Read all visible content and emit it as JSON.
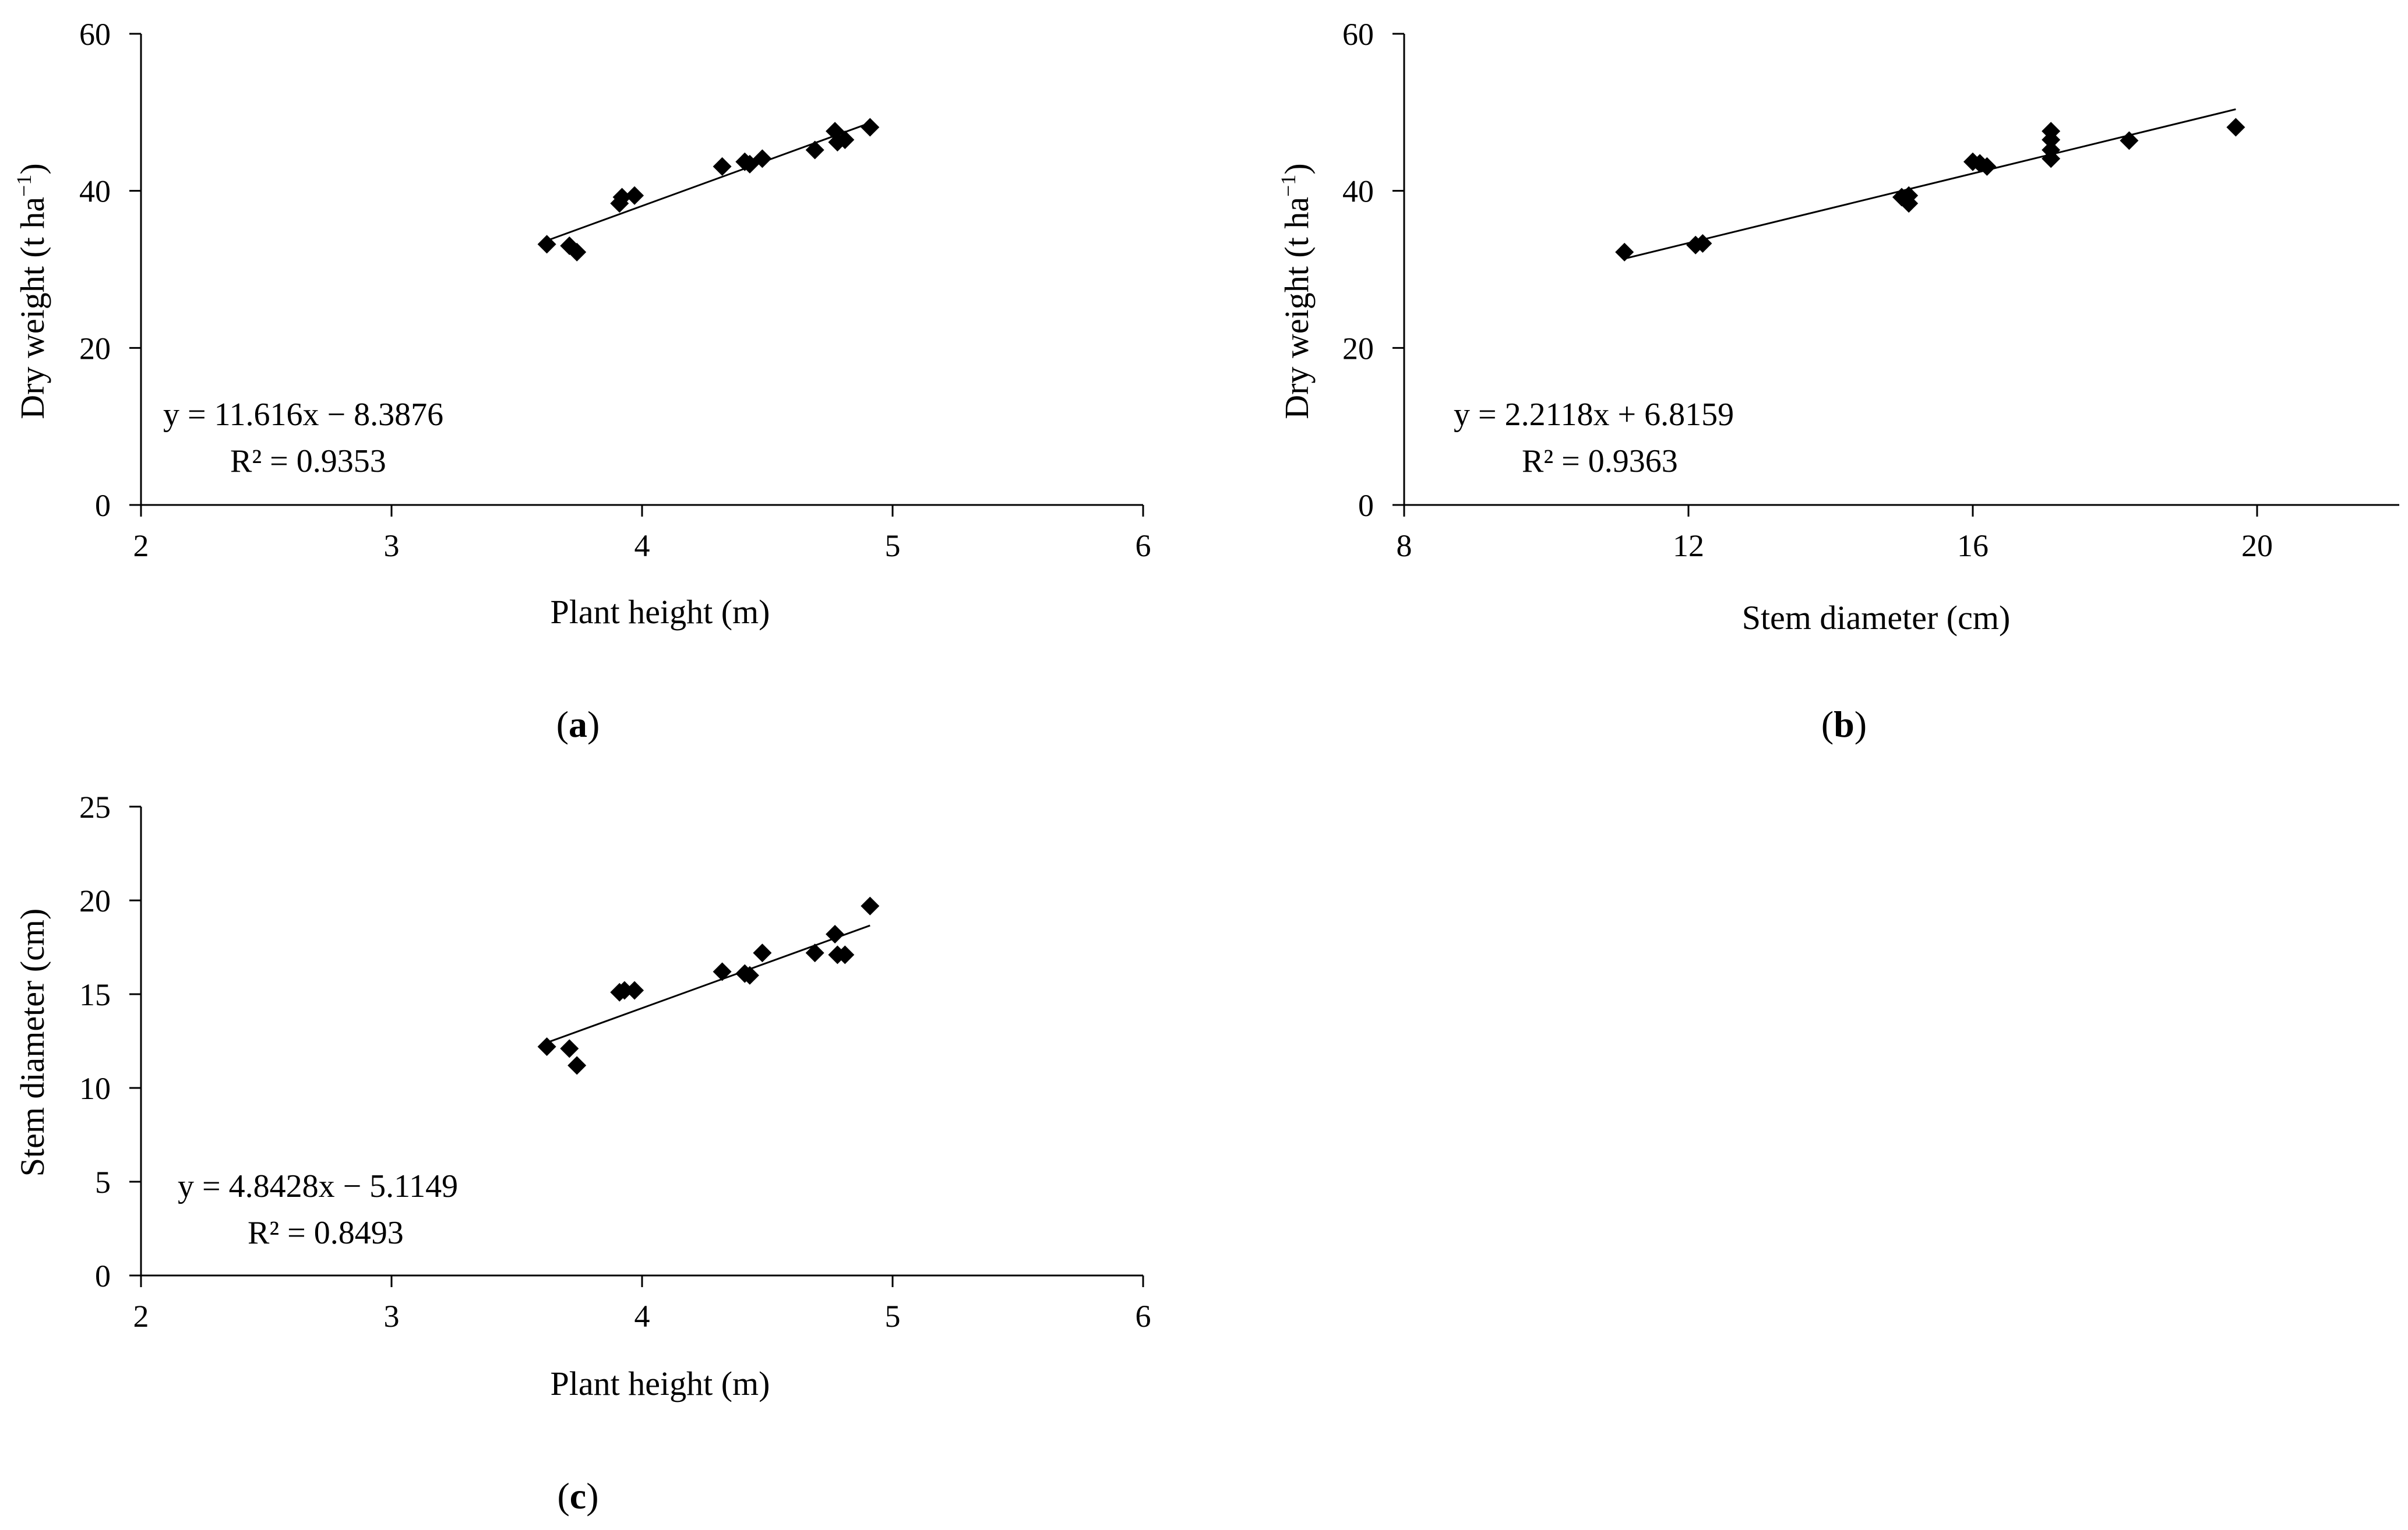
{
  "chart_data": [
    {
      "id": "a",
      "type": "scatter",
      "panel_label": "a",
      "xlabel": "Plant height (m)",
      "ylabel_main": "Dry weight (t ha",
      "ylabel_sup": "−1",
      "ylabel_tail": ")",
      "xlim": [
        2,
        6
      ],
      "ylim": [
        0,
        60
      ],
      "xticks": [
        2,
        3,
        4,
        5,
        6
      ],
      "yticks": [
        0,
        20,
        40,
        60
      ],
      "x_tick_labels": [
        "2",
        "3",
        "4",
        "5",
        "6"
      ],
      "y_tick_labels": [
        "0",
        "20",
        "40",
        "60"
      ],
      "equation": "y = 11.616x − 8.3876",
      "r2": "R² = 0.9353",
      "fit": {
        "slope": 11.616,
        "intercept": -8.3876,
        "x_range": [
          3.62,
          4.91
        ]
      },
      "points": [
        [
          3.62,
          33.2
        ],
        [
          3.71,
          33.0
        ],
        [
          3.74,
          32.2
        ],
        [
          3.91,
          38.4
        ],
        [
          3.92,
          39.2
        ],
        [
          3.97,
          39.4
        ],
        [
          4.32,
          43.1
        ],
        [
          4.41,
          43.7
        ],
        [
          4.43,
          43.4
        ],
        [
          4.48,
          44.1
        ],
        [
          4.69,
          45.2
        ],
        [
          4.77,
          47.6
        ],
        [
          4.78,
          46.2
        ],
        [
          4.81,
          46.5
        ],
        [
          4.91,
          48.1
        ]
      ]
    },
    {
      "id": "b",
      "type": "scatter",
      "panel_label": "b",
      "xlabel": "Stem diameter (cm)",
      "ylabel_main": "Dry weight (t ha",
      "ylabel_sup": "−1",
      "ylabel_tail": ")",
      "xlim": [
        8,
        22
      ],
      "ylim": [
        0,
        60
      ],
      "xticks": [
        8,
        12,
        16,
        20
      ],
      "yticks": [
        0,
        20,
        40,
        60
      ],
      "x_tick_labels": [
        "8",
        "12",
        "16",
        "20"
      ],
      "y_tick_labels": [
        "0",
        "20",
        "40",
        "60"
      ],
      "equation": "y = 2.2118x + 6.8159",
      "r2": "R² = 0.9363",
      "fit": {
        "slope": 2.2118,
        "intercept": 6.8159,
        "x_range": [
          11.1,
          19.7
        ]
      },
      "points": [
        [
          11.1,
          32.2
        ],
        [
          12.1,
          33.1
        ],
        [
          12.2,
          33.3
        ],
        [
          15.0,
          39.2
        ],
        [
          15.1,
          38.4
        ],
        [
          15.1,
          39.4
        ],
        [
          16.0,
          43.7
        ],
        [
          16.1,
          43.5
        ],
        [
          16.2,
          43.1
        ],
        [
          17.1,
          47.6
        ],
        [
          17.1,
          46.5
        ],
        [
          17.1,
          45.2
        ],
        [
          17.1,
          44.1
        ],
        [
          18.2,
          46.4
        ],
        [
          19.7,
          48.1
        ]
      ]
    },
    {
      "id": "c",
      "type": "scatter",
      "panel_label": "c",
      "xlabel": "Plant height (m)",
      "ylabel_main": "Stem diameter (cm)",
      "ylabel_sup": "",
      "ylabel_tail": "",
      "xlim": [
        2,
        6
      ],
      "ylim": [
        0,
        25
      ],
      "xticks": [
        2,
        3,
        4,
        5,
        6
      ],
      "yticks": [
        0,
        5,
        10,
        15,
        20,
        25
      ],
      "x_tick_labels": [
        "2",
        "3",
        "4",
        "5",
        "6"
      ],
      "y_tick_labels": [
        "0",
        "5",
        "10",
        "15",
        "20",
        "25"
      ],
      "equation": "y = 4.8428x − 5.1149",
      "r2": "R² = 0.8493",
      "fit": {
        "slope": 4.8428,
        "intercept": -5.1149,
        "x_range": [
          3.62,
          4.91
        ]
      },
      "points": [
        [
          3.62,
          12.2
        ],
        [
          3.71,
          12.1
        ],
        [
          3.74,
          11.2
        ],
        [
          3.91,
          15.1
        ],
        [
          3.93,
          15.2
        ],
        [
          3.97,
          15.2
        ],
        [
          4.32,
          16.2
        ],
        [
          4.41,
          16.1
        ],
        [
          4.43,
          16.0
        ],
        [
          4.48,
          17.2
        ],
        [
          4.69,
          17.2
        ],
        [
          4.77,
          18.2
        ],
        [
          4.78,
          17.1
        ],
        [
          4.81,
          17.1
        ],
        [
          4.91,
          19.7
        ]
      ]
    }
  ]
}
